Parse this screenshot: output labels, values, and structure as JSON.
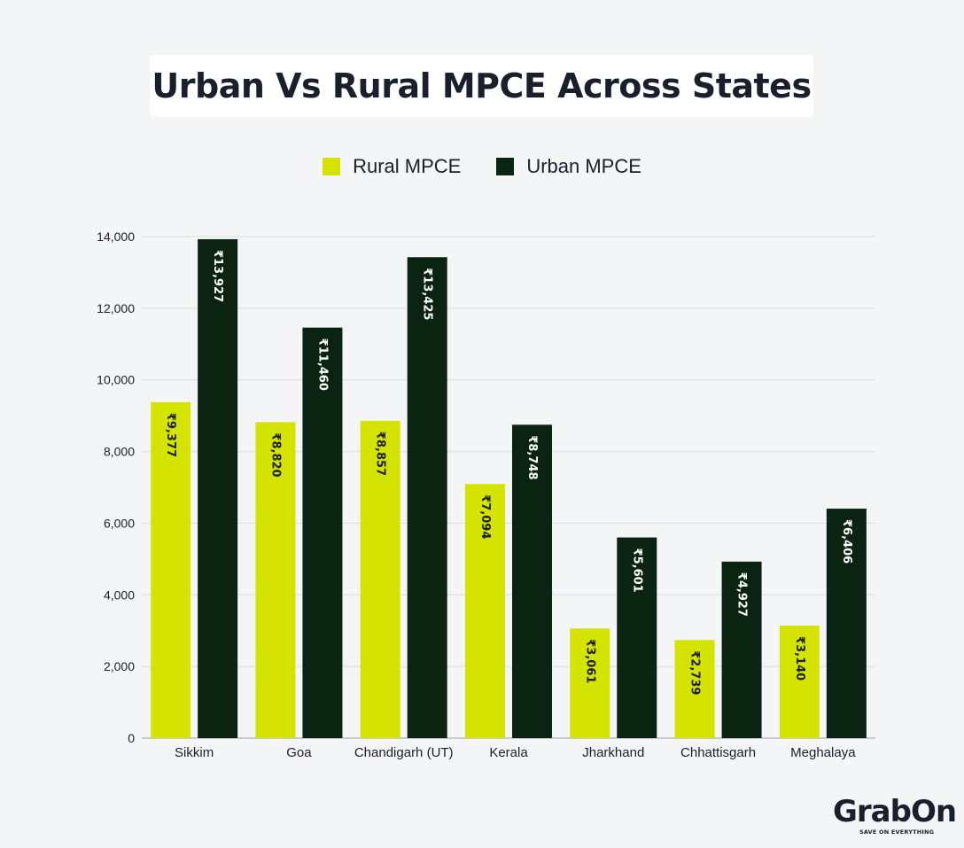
{
  "chart_data": {
    "type": "bar",
    "title": "Urban Vs Rural MPCE Across States",
    "categories": [
      "Sikkim",
      "Goa",
      "Chandigarh (UT)",
      "Kerala",
      "Jharkhand",
      "Chhattisgarh",
      "Meghalaya"
    ],
    "series": [
      {
        "name": "Rural MPCE",
        "color": "#d4e300",
        "values": [
          9377,
          8820,
          8857,
          7094,
          3061,
          2739,
          3140
        ],
        "labels": [
          "₹9,377",
          "₹8,820",
          "₹8,857",
          "₹7,094",
          "₹3,061",
          "₹2,739",
          "₹3,140"
        ]
      },
      {
        "name": "Urban MPCE",
        "color": "#0b2412",
        "values": [
          13927,
          11460,
          13425,
          8748,
          5601,
          4927,
          6406
        ],
        "labels": [
          "₹13,927",
          "₹11,460",
          "₹13,425",
          "₹8,748",
          "₹5,601",
          "₹4,927",
          "₹6,406"
        ]
      }
    ],
    "ylim": [
      0,
      14000
    ],
    "yticks": [
      0,
      2000,
      4000,
      6000,
      8000,
      10000,
      12000,
      14000
    ],
    "ytick_labels": [
      "0",
      "2,000",
      "4,000",
      "6,000",
      "8,000",
      "10,000",
      "12,000",
      "14,000"
    ],
    "grid": true,
    "legend_position": "top-center"
  },
  "brand": {
    "logo_text": "GrabOn",
    "tagline": "SAVE ON EVERYTHING"
  }
}
